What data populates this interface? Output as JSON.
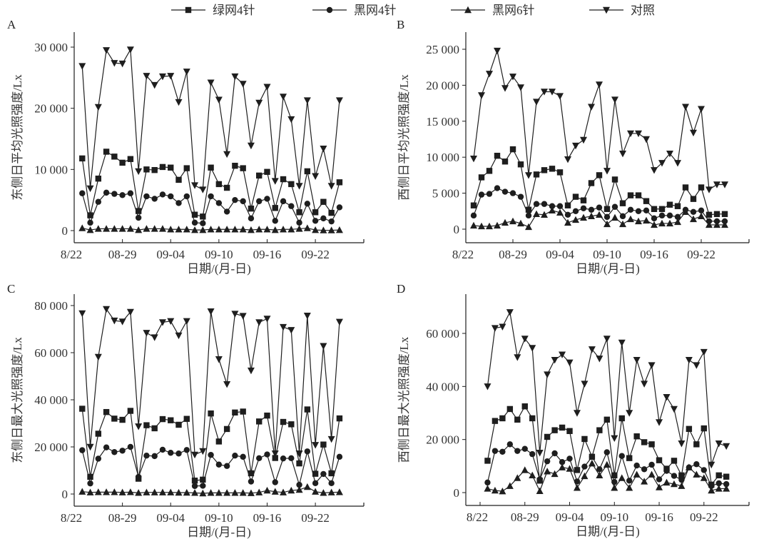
{
  "legend": [
    {
      "name": "绿网4针",
      "marker": "square"
    },
    {
      "name": "黑网4针",
      "marker": "circle"
    },
    {
      "name": "黑网6针",
      "marker": "triangle-up"
    },
    {
      "name": "对照",
      "marker": "triangle-down"
    }
  ],
  "chart_data": [
    {
      "type": "line",
      "panel": "A",
      "ylabel": "东侧日平均光照强度/Lx",
      "xlabel": "日期/(月-日)",
      "yticks": [
        0,
        10000,
        20000,
        30000
      ],
      "ytick_labels": [
        "0",
        "10 000",
        "20 000",
        "30 000"
      ],
      "xtick_days": [
        0,
        6,
        12,
        18,
        24,
        30
      ],
      "xtick_labels": [
        "8/22",
        "08-29",
        "09-04",
        "09-10",
        "09-16",
        "09-22"
      ],
      "x_start": "08-24",
      "x_end": "09-25",
      "series": [
        {
          "name": "绿网4针",
          "marker": "square",
          "values": [
            11800,
            2500,
            8500,
            12900,
            12100,
            11100,
            11700,
            3200,
            10000,
            9900,
            10400,
            10300,
            8300,
            10200,
            2600,
            2300,
            10300,
            7600,
            7000,
            10600,
            10200,
            3600,
            9000,
            9600,
            3700,
            8400,
            7600,
            3000,
            9700,
            3000,
            4700,
            2900,
            7900
          ]
        },
        {
          "name": "黑网4针",
          "marker": "circle",
          "values": [
            6100,
            1300,
            4700,
            6200,
            6000,
            5800,
            6100,
            2100,
            5600,
            5200,
            5900,
            5600,
            4500,
            5600,
            1300,
            1200,
            5600,
            4500,
            3100,
            5000,
            4800,
            2000,
            4800,
            5200,
            1600,
            4800,
            4000,
            1300,
            4400,
            1600,
            2000,
            1500,
            3800
          ]
        },
        {
          "name": "黑网6针",
          "marker": "triangle-up",
          "values": [
            400,
            100,
            300,
            300,
            300,
            300,
            300,
            100,
            300,
            300,
            300,
            200,
            200,
            200,
            100,
            100,
            200,
            200,
            200,
            200,
            200,
            100,
            200,
            200,
            100,
            200,
            200,
            300,
            400,
            100,
            50,
            50,
            100
          ]
        },
        {
          "name": "对照",
          "marker": "triangle-down",
          "values": [
            26900,
            6900,
            20200,
            29500,
            27400,
            27300,
            29600,
            9700,
            25300,
            23800,
            25200,
            25300,
            21000,
            26000,
            7400,
            6700,
            24200,
            21400,
            12500,
            25200,
            24000,
            13900,
            20900,
            23500,
            8100,
            21900,
            18200,
            7300,
            21300,
            8900,
            13400,
            7300,
            21300
          ]
        }
      ]
    },
    {
      "type": "line",
      "panel": "B",
      "ylabel": "西侧日平均光照强度/Lx",
      "xlabel": "日期/(月-日)",
      "yticks": [
        0,
        5000,
        10000,
        15000,
        20000,
        25000
      ],
      "ytick_labels": [
        "0",
        "5 000",
        "10 000",
        "15 000",
        "20 000",
        "25 000"
      ],
      "xtick_days": [
        0,
        6,
        12,
        18,
        24,
        30
      ],
      "xtick_labels": [
        "8/22",
        "08-29",
        "09-04",
        "09-10",
        "09-16",
        "09-22"
      ],
      "x_start": "08-24",
      "x_end": "09-25",
      "series": [
        {
          "name": "绿网4针",
          "marker": "square",
          "values": [
            3300,
            7200,
            8100,
            10200,
            9400,
            11100,
            9000,
            2700,
            7600,
            8200,
            8400,
            7900,
            3300,
            4500,
            4000,
            6400,
            7500,
            2800,
            6900,
            3600,
            4700,
            4700,
            3900,
            2800,
            2800,
            3400,
            3200,
            5800,
            4200,
            5800,
            2000,
            2100,
            2100
          ]
        },
        {
          "name": "黑网4针",
          "marker": "circle",
          "values": [
            1900,
            4800,
            4900,
            5700,
            5200,
            5000,
            4500,
            1900,
            3500,
            3500,
            3200,
            3200,
            2000,
            2500,
            2900,
            2700,
            3000,
            1700,
            3100,
            1800,
            2700,
            2500,
            2600,
            1500,
            1900,
            1900,
            1700,
            2700,
            2400,
            2600,
            1100,
            1100,
            1100
          ]
        },
        {
          "name": "黑网6针",
          "marker": "triangle-up",
          "values": [
            500,
            400,
            400,
            500,
            900,
            1100,
            800,
            300,
            2100,
            2000,
            2600,
            2300,
            900,
            1300,
            1600,
            1800,
            2000,
            700,
            1600,
            700,
            1400,
            1100,
            1200,
            600,
            800,
            800,
            1000,
            2400,
            1400,
            1800,
            600,
            600,
            600
          ]
        },
        {
          "name": "对照",
          "marker": "triangle-down",
          "values": [
            9800,
            18600,
            21600,
            24800,
            19600,
            21200,
            19700,
            7500,
            17700,
            19100,
            19100,
            18500,
            9700,
            11600,
            12400,
            17000,
            20100,
            8100,
            18000,
            10500,
            13300,
            13300,
            12500,
            8200,
            9200,
            10500,
            9200,
            17000,
            13400,
            16700,
            5500,
            6200,
            6200
          ]
        }
      ]
    },
    {
      "type": "line",
      "panel": "C",
      "ylabel": "东侧日最大光照强度/Lx",
      "xlabel": "日期/(月-日)",
      "yticks": [
        0,
        20000,
        40000,
        60000,
        80000
      ],
      "ytick_labels": [
        "0",
        "20 000",
        "40 000",
        "60 000",
        "80 000"
      ],
      "xtick_days": [
        0,
        6,
        12,
        18,
        24,
        30
      ],
      "xtick_labels": [
        "8/22",
        "08-29",
        "09-04",
        "09-10",
        "09-16",
        "09-22"
      ],
      "x_start": "08-24",
      "x_end": "09-25",
      "series": [
        {
          "name": "绿网4针",
          "marker": "square",
          "values": [
            36200,
            7300,
            25600,
            34800,
            32000,
            31500,
            35300,
            6500,
            29200,
            27900,
            31800,
            31300,
            29400,
            31900,
            5700,
            6100,
            34200,
            22300,
            27600,
            34600,
            35000,
            8800,
            30800,
            33300,
            15300,
            30600,
            29600,
            13000,
            35900,
            8600,
            21000,
            8800,
            32100
          ]
        },
        {
          "name": "黑网4针",
          "marker": "circle",
          "values": [
            18600,
            4500,
            15000,
            19800,
            17800,
            18400,
            20000,
            7300,
            16300,
            16100,
            18800,
            17500,
            17200,
            18700,
            3400,
            3500,
            16600,
            12500,
            11900,
            16300,
            15800,
            5300,
            15200,
            16800,
            5000,
            15100,
            15200,
            3900,
            18100,
            4600,
            8500,
            4600,
            15800
          ]
        },
        {
          "name": "黑网6针",
          "marker": "triangle-up",
          "values": [
            1000,
            700,
            800,
            800,
            800,
            700,
            800,
            500,
            700,
            700,
            700,
            700,
            600,
            600,
            500,
            300,
            500,
            500,
            500,
            500,
            500,
            400,
            700,
            1500,
            1000,
            700,
            1500,
            1800,
            3000,
            1000,
            500,
            700,
            800
          ]
        },
        {
          "name": "对照",
          "marker": "triangle-down",
          "values": [
            76700,
            20000,
            58200,
            78500,
            73600,
            73200,
            77300,
            28700,
            68400,
            66500,
            72900,
            73400,
            67300,
            73400,
            16700,
            18200,
            77500,
            57200,
            46600,
            76500,
            75600,
            52400,
            72900,
            74400,
            17200,
            70900,
            69600,
            17200,
            75700,
            20800,
            62800,
            23300,
            73100
          ]
        }
      ]
    },
    {
      "type": "line",
      "panel": "D",
      "ylabel": "西侧日最大光照强度/Lx",
      "xlabel": "日期/(月-日)",
      "yticks": [
        0,
        20000,
        40000,
        60000
      ],
      "ytick_labels": [
        "0",
        "20 000",
        "40 000",
        "60 000"
      ],
      "xtick_days": [
        0,
        6,
        12,
        18,
        24,
        30
      ],
      "xtick_labels": [
        "8/22",
        "08-29",
        "09-04",
        "09-10",
        "09-16",
        "09-22"
      ],
      "x_start": "08-24",
      "x_end": "09-25",
      "series": [
        {
          "name": "绿网4针",
          "marker": "square",
          "values": [
            12000,
            27000,
            28000,
            31500,
            27500,
            32500,
            28000,
            4500,
            21000,
            23500,
            24500,
            23200,
            8500,
            20200,
            13500,
            23500,
            27500,
            6500,
            28000,
            13000,
            21200,
            19000,
            18200,
            12200,
            9000,
            12000,
            6500,
            24000,
            18200,
            24200,
            3000,
            6500,
            6000
          ]
        },
        {
          "name": "黑网4针",
          "marker": "circle",
          "values": [
            3800,
            15700,
            15400,
            18200,
            15700,
            16500,
            14500,
            5000,
            11800,
            14800,
            11500,
            12800,
            4200,
            9800,
            13500,
            8800,
            15200,
            4000,
            13800,
            4500,
            10200,
            8800,
            10500,
            5000,
            8200,
            6300,
            4800,
            9500,
            10700,
            8500,
            2500,
            3500,
            3200
          ]
        },
        {
          "name": "黑网6针",
          "marker": "triangle-up",
          "values": [
            1500,
            800,
            500,
            2500,
            5500,
            8500,
            6500,
            600,
            8000,
            7000,
            9500,
            9000,
            1800,
            6200,
            11000,
            6500,
            10500,
            1800,
            5500,
            1800,
            6800,
            4200,
            6800,
            2000,
            3800,
            3200,
            2500,
            9500,
            6800,
            5500,
            800,
            1500,
            1500
          ]
        },
        {
          "name": "对照",
          "marker": "triangle-down",
          "values": [
            40000,
            62000,
            62500,
            68000,
            51000,
            58000,
            54500,
            15000,
            44500,
            50000,
            52000,
            49000,
            30000,
            41000,
            54000,
            50500,
            58000,
            20500,
            56500,
            30000,
            50000,
            41000,
            48000,
            26500,
            36000,
            31500,
            18500,
            50000,
            48000,
            53000,
            10500,
            18500,
            17500
          ]
        }
      ]
    }
  ]
}
